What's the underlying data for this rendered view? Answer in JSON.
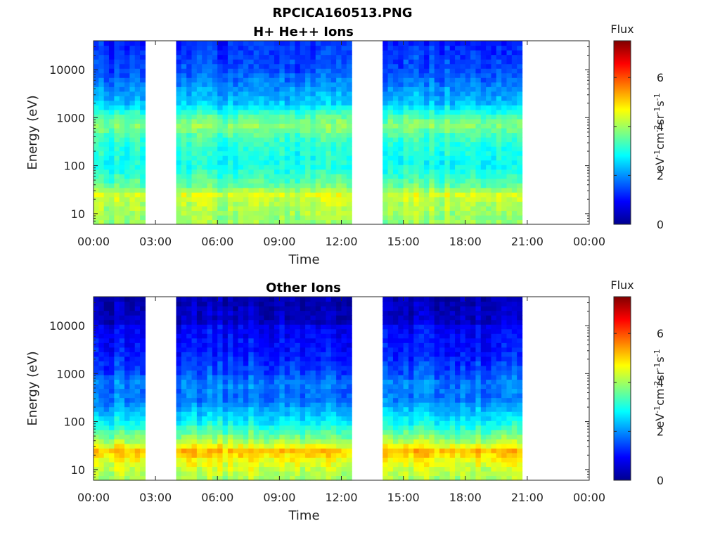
{
  "figure": {
    "title": "RPCICA160513.PNG",
    "colorbar_label": "Flux",
    "colorbar_units": "eV-1cm-2sr-1s-1",
    "colorbar_units_parts": [
      "eV",
      "-1",
      "cm",
      "-2",
      "sr",
      "-1",
      "s",
      "-1"
    ]
  },
  "chart_data": [
    {
      "type": "heatmap",
      "title": "H+ He++ Ions",
      "xlabel": "Time",
      "ylabel": "Energy (eV)",
      "x_tick_labels": [
        "00:00",
        "03:00",
        "06:00",
        "09:00",
        "12:00",
        "15:00",
        "18:00",
        "21:00",
        "00:00"
      ],
      "x_ticks_hours": [
        0,
        3,
        6,
        9,
        12,
        15,
        18,
        21,
        24
      ],
      "xlim_hours": [
        0,
        24
      ],
      "y_scale": "log",
      "y_tick_labels": [
        "10",
        "100",
        "1000",
        "10000"
      ],
      "y_ticks": [
        10,
        100,
        1000,
        10000
      ],
      "ylim": [
        6,
        40000
      ],
      "colorbar": {
        "label": "Flux",
        "range": [
          0,
          7.5
        ],
        "ticks": [
          0,
          2,
          4,
          6
        ],
        "colormap": "jet"
      },
      "data_gaps_hours": [
        [
          2.4,
          2.5
        ],
        [
          2.6,
          4.0
        ],
        [
          12.6,
          14.0
        ],
        [
          20.7,
          24.0
        ]
      ],
      "flux_profile": [
        {
          "energy_eV": 6,
          "flux": 3.9
        },
        {
          "energy_eV": 10,
          "flux": 4.0
        },
        {
          "energy_eV": 15,
          "flux": 4.1
        },
        {
          "energy_eV": 25,
          "flux": 4.4
        },
        {
          "energy_eV": 40,
          "flux": 3.5
        },
        {
          "energy_eV": 100,
          "flux": 2.9
        },
        {
          "energy_eV": 300,
          "flux": 3.1
        },
        {
          "energy_eV": 700,
          "flux": 3.8
        },
        {
          "energy_eV": 1000,
          "flux": 3.5
        },
        {
          "energy_eV": 2000,
          "flux": 2.4
        },
        {
          "energy_eV": 5000,
          "flux": 1.9
        },
        {
          "energy_eV": 10000,
          "flux": 1.5
        },
        {
          "energy_eV": 40000,
          "flux": 1.2
        }
      ]
    },
    {
      "type": "heatmap",
      "title": "Other Ions",
      "xlabel": "Time",
      "ylabel": "Energy (eV)",
      "x_tick_labels": [
        "00:00",
        "03:00",
        "06:00",
        "09:00",
        "12:00",
        "15:00",
        "18:00",
        "21:00",
        "00:00"
      ],
      "x_ticks_hours": [
        0,
        3,
        6,
        9,
        12,
        15,
        18,
        21,
        24
      ],
      "xlim_hours": [
        0,
        24
      ],
      "y_scale": "log",
      "y_tick_labels": [
        "10",
        "100",
        "1000",
        "10000"
      ],
      "y_ticks": [
        10,
        100,
        1000,
        10000
      ],
      "ylim": [
        6,
        40000
      ],
      "colorbar": {
        "label": "Flux",
        "range": [
          0,
          7.5
        ],
        "ticks": [
          0,
          2,
          4,
          6
        ],
        "colormap": "jet"
      },
      "data_gaps_hours": [
        [
          2.4,
          2.5
        ],
        [
          2.6,
          4.0
        ],
        [
          12.6,
          14.0
        ],
        [
          20.7,
          24.0
        ]
      ],
      "flux_profile": [
        {
          "energy_eV": 6,
          "flux": 4.0
        },
        {
          "energy_eV": 10,
          "flux": 4.3
        },
        {
          "energy_eV": 15,
          "flux": 4.6
        },
        {
          "energy_eV": 25,
          "flux": 5.2
        },
        {
          "energy_eV": 40,
          "flux": 4.0
        },
        {
          "energy_eV": 100,
          "flux": 2.8
        },
        {
          "energy_eV": 300,
          "flux": 1.8
        },
        {
          "energy_eV": 700,
          "flux": 1.9
        },
        {
          "energy_eV": 1000,
          "flux": 1.5
        },
        {
          "energy_eV": 3000,
          "flux": 1.1
        },
        {
          "energy_eV": 10000,
          "flux": 0.9
        },
        {
          "energy_eV": 12000,
          "flux": 0.5
        },
        {
          "energy_eV": 40000,
          "flux": 0.3
        }
      ]
    }
  ]
}
